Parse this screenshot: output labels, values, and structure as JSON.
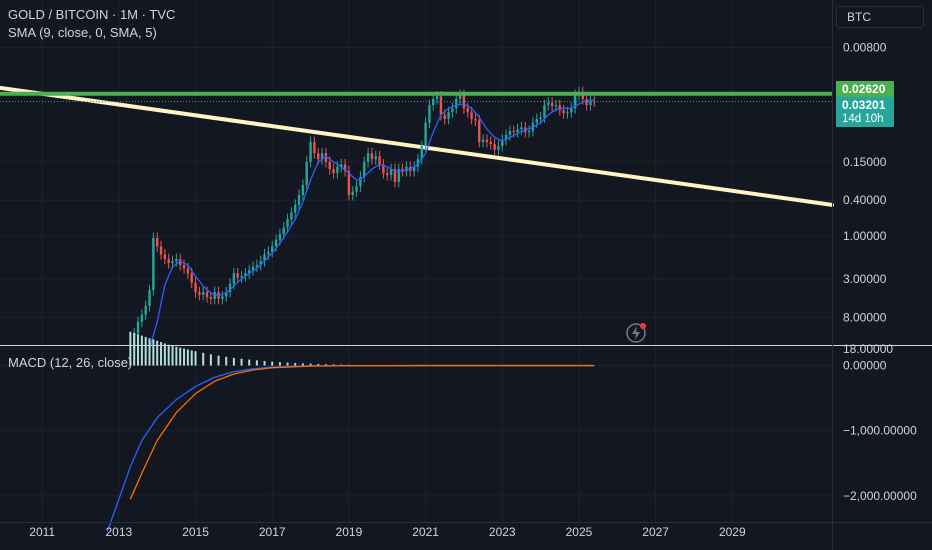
{
  "header": {
    "symbol": "GOLD / BITCOIN · 1M · TVC",
    "indicator": "SMA (9, close, 0, SMA, 5)",
    "currency_button": "BTC"
  },
  "macd_legend": "MACD (12, 26, close)",
  "price_badges": {
    "resistance": "0.02620",
    "last": "0.03201",
    "countdown": "14d 10h"
  },
  "colors": {
    "background": "#131722",
    "grid": "#1e222d",
    "up_candle": "#26a69a",
    "down_candle": "#ef5350",
    "sma": "#2962ff",
    "resistance_line": "#4caf50",
    "trend_line": "#fff3c4",
    "macd_line": "#2962ff",
    "signal_line": "#ff6d00",
    "histogram": "#b2dfdb"
  },
  "alert_icon": "lightning-alert-icon",
  "chart_data": [
    {
      "type": "line",
      "name": "price",
      "y_scale": "log-inverted",
      "y_ticks": [
        "0.00800",
        "0.15000",
        "0.40000",
        "1.00000",
        "3.00000",
        "8.00000",
        "18.00000"
      ],
      "y_tick_values": [
        0.008,
        0.15,
        0.4,
        1.0,
        3.0,
        8.0,
        18.0
      ],
      "x_ticks": [
        "2011",
        "2013",
        "2015",
        "2017",
        "2019",
        "2021",
        "2023",
        "2025",
        "2027",
        "2029"
      ],
      "x_tick_values": [
        2011,
        2013,
        2015,
        2017,
        2019,
        2021,
        2023,
        2025,
        2027,
        2029
      ],
      "x_range": [
        2009.9,
        2031.6
      ],
      "y_range": [
        0.0027,
        18.5
      ],
      "series": [
        {
          "values": [
            [
              2013.3,
              18.0
            ],
            [
              2013.4,
              12.0
            ],
            [
              2013.5,
              9.0
            ],
            [
              2013.6,
              7.5
            ],
            [
              2013.7,
              6.0
            ],
            [
              2013.8,
              4.0
            ],
            [
              2013.9,
              1.05
            ],
            [
              2014.0,
              1.3
            ],
            [
              2014.1,
              1.6
            ],
            [
              2014.2,
              1.8
            ],
            [
              2014.3,
              2.0
            ],
            [
              2014.4,
              1.9
            ],
            [
              2014.5,
              1.8
            ],
            [
              2014.6,
              2.1
            ],
            [
              2014.7,
              2.3
            ],
            [
              2014.8,
              2.6
            ],
            [
              2014.9,
              3.3
            ],
            [
              2015.0,
              4.2
            ],
            [
              2015.1,
              4.5
            ],
            [
              2015.2,
              4.2
            ],
            [
              2015.3,
              4.8
            ],
            [
              2015.4,
              5.0
            ],
            [
              2015.5,
              4.2
            ],
            [
              2015.6,
              5.0
            ],
            [
              2015.7,
              4.7
            ],
            [
              2015.8,
              4.2
            ],
            [
              2015.9,
              3.4
            ],
            [
              2016.0,
              2.6
            ],
            [
              2016.1,
              2.9
            ],
            [
              2016.2,
              2.8
            ],
            [
              2016.3,
              2.6
            ],
            [
              2016.4,
              2.4
            ],
            [
              2016.5,
              2.2
            ],
            [
              2016.6,
              2.1
            ],
            [
              2016.7,
              1.9
            ],
            [
              2016.8,
              1.6
            ],
            [
              2016.9,
              1.5
            ],
            [
              2017.0,
              1.3
            ],
            [
              2017.1,
              1.1
            ],
            [
              2017.2,
              0.95
            ],
            [
              2017.3,
              0.8
            ],
            [
              2017.4,
              0.65
            ],
            [
              2017.5,
              0.55
            ],
            [
              2017.6,
              0.45
            ],
            [
              2017.7,
              0.35
            ],
            [
              2017.8,
              0.27
            ],
            [
              2017.9,
              0.15
            ],
            [
              2018.0,
              0.09
            ],
            [
              2018.1,
              0.12
            ],
            [
              2018.2,
              0.14
            ],
            [
              2018.3,
              0.12
            ],
            [
              2018.4,
              0.15
            ],
            [
              2018.5,
              0.18
            ],
            [
              2018.6,
              0.2
            ],
            [
              2018.7,
              0.17
            ],
            [
              2018.8,
              0.16
            ],
            [
              2018.9,
              0.19
            ],
            [
              2019.0,
              0.35
            ],
            [
              2019.1,
              0.32
            ],
            [
              2019.2,
              0.28
            ],
            [
              2019.3,
              0.22
            ],
            [
              2019.4,
              0.15
            ],
            [
              2019.5,
              0.12
            ],
            [
              2019.6,
              0.14
            ],
            [
              2019.7,
              0.13
            ],
            [
              2019.8,
              0.16
            ],
            [
              2019.9,
              0.2
            ],
            [
              2020.0,
              0.21
            ],
            [
              2020.1,
              0.18
            ],
            [
              2020.2,
              0.25
            ],
            [
              2020.3,
              0.18
            ],
            [
              2020.4,
              0.19
            ],
            [
              2020.5,
              0.17
            ],
            [
              2020.6,
              0.19
            ],
            [
              2020.7,
              0.17
            ],
            [
              2020.8,
              0.14
            ],
            [
              2020.9,
              0.1
            ],
            [
              2021.0,
              0.055
            ],
            [
              2021.1,
              0.035
            ],
            [
              2021.2,
              0.03
            ],
            [
              2021.3,
              0.028
            ],
            [
              2021.4,
              0.045
            ],
            [
              2021.5,
              0.05
            ],
            [
              2021.6,
              0.042
            ],
            [
              2021.7,
              0.038
            ],
            [
              2021.8,
              0.03
            ],
            [
              2021.9,
              0.027
            ],
            [
              2022.0,
              0.038
            ],
            [
              2022.1,
              0.042
            ],
            [
              2022.2,
              0.05
            ],
            [
              2022.3,
              0.052
            ],
            [
              2022.4,
              0.09
            ],
            [
              2022.5,
              0.085
            ],
            [
              2022.6,
              0.09
            ],
            [
              2022.7,
              0.095
            ],
            [
              2022.8,
              0.11
            ],
            [
              2022.9,
              0.1
            ],
            [
              2023.0,
              0.085
            ],
            [
              2023.1,
              0.075
            ],
            [
              2023.2,
              0.068
            ],
            [
              2023.3,
              0.07
            ],
            [
              2023.4,
              0.065
            ],
            [
              2023.5,
              0.062
            ],
            [
              2023.6,
              0.07
            ],
            [
              2023.7,
              0.068
            ],
            [
              2023.8,
              0.055
            ],
            [
              2023.9,
              0.05
            ],
            [
              2024.0,
              0.048
            ],
            [
              2024.1,
              0.035
            ],
            [
              2024.2,
              0.033
            ],
            [
              2024.3,
              0.036
            ],
            [
              2024.4,
              0.035
            ],
            [
              2024.5,
              0.04
            ],
            [
              2024.6,
              0.043
            ],
            [
              2024.7,
              0.042
            ],
            [
              2024.8,
              0.038
            ],
            [
              2024.9,
              0.027
            ],
            [
              2025.0,
              0.025
            ],
            [
              2025.1,
              0.03
            ],
            [
              2025.2,
              0.035
            ],
            [
              2025.3,
              0.032
            ],
            [
              2025.4,
              0.032
            ]
          ]
        }
      ],
      "sma": [
        [
          2013.8,
          18.0
        ],
        [
          2014.0,
          9.0
        ],
        [
          2014.2,
          3.5
        ],
        [
          2014.4,
          2.2
        ],
        [
          2014.6,
          1.9
        ],
        [
          2014.8,
          2.1
        ],
        [
          2015.0,
          2.8
        ],
        [
          2015.2,
          3.6
        ],
        [
          2015.4,
          4.3
        ],
        [
          2015.6,
          4.6
        ],
        [
          2015.8,
          4.3
        ],
        [
          2016.0,
          3.6
        ],
        [
          2016.2,
          3.0
        ],
        [
          2016.4,
          2.6
        ],
        [
          2016.6,
          2.3
        ],
        [
          2016.8,
          1.9
        ],
        [
          2017.0,
          1.55
        ],
        [
          2017.2,
          1.2
        ],
        [
          2017.4,
          0.9
        ],
        [
          2017.6,
          0.65
        ],
        [
          2017.8,
          0.42
        ],
        [
          2018.0,
          0.24
        ],
        [
          2018.2,
          0.15
        ],
        [
          2018.4,
          0.13
        ],
        [
          2018.6,
          0.15
        ],
        [
          2018.8,
          0.17
        ],
        [
          2019.0,
          0.2
        ],
        [
          2019.2,
          0.24
        ],
        [
          2019.4,
          0.22
        ],
        [
          2019.6,
          0.18
        ],
        [
          2019.8,
          0.16
        ],
        [
          2020.0,
          0.17
        ],
        [
          2020.2,
          0.19
        ],
        [
          2020.4,
          0.19
        ],
        [
          2020.6,
          0.18
        ],
        [
          2020.8,
          0.16
        ],
        [
          2021.0,
          0.12
        ],
        [
          2021.2,
          0.07
        ],
        [
          2021.4,
          0.045
        ],
        [
          2021.6,
          0.038
        ],
        [
          2021.8,
          0.035
        ],
        [
          2022.0,
          0.034
        ],
        [
          2022.2,
          0.038
        ],
        [
          2022.4,
          0.048
        ],
        [
          2022.6,
          0.065
        ],
        [
          2022.8,
          0.08
        ],
        [
          2023.0,
          0.088
        ],
        [
          2023.2,
          0.08
        ],
        [
          2023.4,
          0.072
        ],
        [
          2023.6,
          0.066
        ],
        [
          2023.8,
          0.062
        ],
        [
          2024.0,
          0.055
        ],
        [
          2024.2,
          0.045
        ],
        [
          2024.4,
          0.039
        ],
        [
          2024.6,
          0.038
        ],
        [
          2024.8,
          0.038
        ],
        [
          2025.0,
          0.034
        ],
        [
          2025.2,
          0.031
        ],
        [
          2025.4,
          0.031
        ]
      ],
      "resistance": 0.0262,
      "trend_line": [
        [
          2009.9,
          0.0225
        ],
        [
          2031.6,
          0.45
        ]
      ]
    },
    {
      "type": "line",
      "name": "macd",
      "y_ticks": [
        "0.00000",
        "−1,000.00000",
        "−2,000.00000"
      ],
      "y_tick_values": [
        0,
        -1000,
        -2000
      ],
      "y_range": [
        -2400,
        300
      ],
      "macd": [
        [
          2012.7,
          -2550
        ],
        [
          2013.0,
          -2050
        ],
        [
          2013.3,
          -1550
        ],
        [
          2013.6,
          -1150
        ],
        [
          2014.0,
          -800
        ],
        [
          2014.5,
          -520
        ],
        [
          2015.0,
          -320
        ],
        [
          2015.5,
          -180
        ],
        [
          2016.0,
          -95
        ],
        [
          2016.5,
          -50
        ],
        [
          2017.0,
          -22
        ],
        [
          2018.0,
          -6
        ],
        [
          2019.0,
          -2
        ],
        [
          2021.0,
          0
        ],
        [
          2025.4,
          0
        ]
      ],
      "signal": [
        [
          2013.3,
          -2050
        ],
        [
          2013.6,
          -1650
        ],
        [
          2014.0,
          -1150
        ],
        [
          2014.5,
          -720
        ],
        [
          2015.0,
          -430
        ],
        [
          2015.5,
          -240
        ],
        [
          2016.0,
          -130
        ],
        [
          2016.5,
          -68
        ],
        [
          2017.0,
          -34
        ],
        [
          2018.0,
          -9
        ],
        [
          2019.0,
          -3
        ],
        [
          2021.0,
          0
        ],
        [
          2025.4,
          0
        ]
      ],
      "histogram": [
        [
          2013.3,
          520
        ],
        [
          2013.4,
          500
        ],
        [
          2013.5,
          480
        ],
        [
          2013.6,
          460
        ],
        [
          2013.7,
          440
        ],
        [
          2013.8,
          420
        ],
        [
          2013.9,
          400
        ],
        [
          2014.0,
          380
        ],
        [
          2014.1,
          360
        ],
        [
          2014.2,
          340
        ],
        [
          2014.3,
          320
        ],
        [
          2014.4,
          305
        ],
        [
          2014.5,
          290
        ],
        [
          2014.6,
          275
        ],
        [
          2014.7,
          260
        ],
        [
          2014.8,
          245
        ],
        [
          2014.9,
          232
        ],
        [
          2015.0,
          220
        ],
        [
          2015.2,
          195
        ],
        [
          2015.4,
          172
        ],
        [
          2015.6,
          152
        ],
        [
          2015.8,
          134
        ],
        [
          2016.0,
          118
        ],
        [
          2016.2,
          104
        ],
        [
          2016.4,
          92
        ],
        [
          2016.6,
          80
        ],
        [
          2016.8,
          70
        ],
        [
          2017.0,
          60
        ],
        [
          2017.2,
          52
        ],
        [
          2017.4,
          45
        ],
        [
          2017.6,
          39
        ],
        [
          2017.8,
          33
        ],
        [
          2018.0,
          28
        ],
        [
          2018.2,
          24
        ],
        [
          2018.4,
          20
        ],
        [
          2018.6,
          17
        ],
        [
          2018.8,
          14
        ],
        [
          2019.0,
          12
        ],
        [
          2019.2,
          10
        ],
        [
          2019.4,
          8
        ],
        [
          2019.6,
          7
        ],
        [
          2019.8,
          6
        ],
        [
          2020.0,
          5
        ],
        [
          2020.4,
          4
        ],
        [
          2020.8,
          3
        ],
        [
          2021.2,
          3
        ],
        [
          2021.6,
          2
        ],
        [
          2022.0,
          2
        ],
        [
          2022.4,
          2
        ],
        [
          2022.8,
          2
        ],
        [
          2023.2,
          2
        ],
        [
          2023.6,
          2
        ],
        [
          2024.0,
          2
        ],
        [
          2024.4,
          2
        ],
        [
          2024.8,
          2
        ],
        [
          2025.2,
          2
        ]
      ]
    }
  ]
}
